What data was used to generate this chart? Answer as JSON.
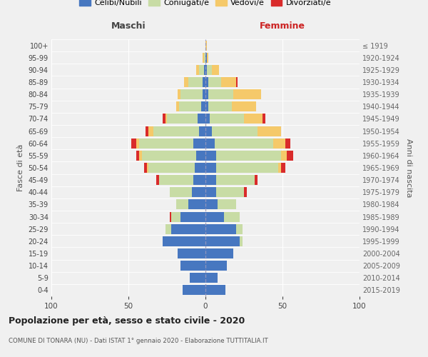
{
  "age_groups": [
    "0-4",
    "5-9",
    "10-14",
    "15-19",
    "20-24",
    "25-29",
    "30-34",
    "35-39",
    "40-44",
    "45-49",
    "50-54",
    "55-59",
    "60-64",
    "65-69",
    "70-74",
    "75-79",
    "80-84",
    "85-89",
    "90-94",
    "95-99",
    "100+"
  ],
  "birth_years": [
    "2015-2019",
    "2010-2014",
    "2005-2009",
    "2000-2004",
    "1995-1999",
    "1990-1994",
    "1985-1989",
    "1980-1984",
    "1975-1979",
    "1970-1974",
    "1965-1969",
    "1960-1964",
    "1955-1959",
    "1950-1954",
    "1945-1949",
    "1940-1944",
    "1935-1939",
    "1930-1934",
    "1925-1929",
    "1920-1924",
    "≤ 1919"
  ],
  "colors": {
    "celibi": "#4777c0",
    "coniugati": "#c8dca5",
    "vedovi": "#f5c96a",
    "divorziati": "#d92b2b"
  },
  "maschi": {
    "celibi": [
      15,
      10,
      16,
      18,
      28,
      22,
      16,
      11,
      9,
      8,
      7,
      6,
      8,
      4,
      5,
      3,
      2,
      2,
      1,
      0,
      0
    ],
    "coniugati": [
      0,
      0,
      0,
      0,
      0,
      4,
      6,
      8,
      14,
      22,
      30,
      35,
      35,
      30,
      20,
      14,
      14,
      9,
      3,
      1,
      0
    ],
    "vedovi": [
      0,
      0,
      0,
      0,
      0,
      0,
      0,
      0,
      0,
      0,
      1,
      2,
      2,
      3,
      1,
      2,
      2,
      3,
      2,
      1,
      0
    ],
    "divorziati": [
      0,
      0,
      0,
      0,
      0,
      0,
      1,
      0,
      0,
      2,
      2,
      2,
      3,
      2,
      2,
      0,
      0,
      0,
      0,
      0,
      0
    ]
  },
  "femmine": {
    "celibi": [
      13,
      8,
      14,
      18,
      22,
      20,
      12,
      8,
      7,
      7,
      7,
      7,
      6,
      4,
      3,
      2,
      2,
      2,
      1,
      1,
      0
    ],
    "coniugati": [
      0,
      0,
      0,
      0,
      2,
      4,
      10,
      12,
      18,
      25,
      40,
      42,
      38,
      30,
      22,
      15,
      16,
      8,
      3,
      0,
      0
    ],
    "vedovi": [
      0,
      0,
      0,
      0,
      0,
      0,
      0,
      0,
      0,
      0,
      2,
      4,
      8,
      15,
      12,
      16,
      18,
      10,
      5,
      1,
      1
    ],
    "divorziati": [
      0,
      0,
      0,
      0,
      0,
      0,
      0,
      0,
      2,
      2,
      3,
      4,
      3,
      0,
      2,
      0,
      0,
      1,
      0,
      0,
      0
    ]
  },
  "xlim": 100,
  "title": "Popolazione per età, sesso e stato civile - 2020",
  "subtitle": "COMUNE DI TONARA (NU) - Dati ISTAT 1° gennaio 2020 - Elaborazione TUTTITALIA.IT",
  "xlabel_left": "Maschi",
  "xlabel_right": "Femmine",
  "ylabel_left": "Fasce di età",
  "ylabel_right": "Anni di nascita",
  "legend_labels": [
    "Celibi/Nubili",
    "Coniugati/e",
    "Vedovi/e",
    "Divorziati/e"
  ],
  "background_color": "#f0f0f0"
}
